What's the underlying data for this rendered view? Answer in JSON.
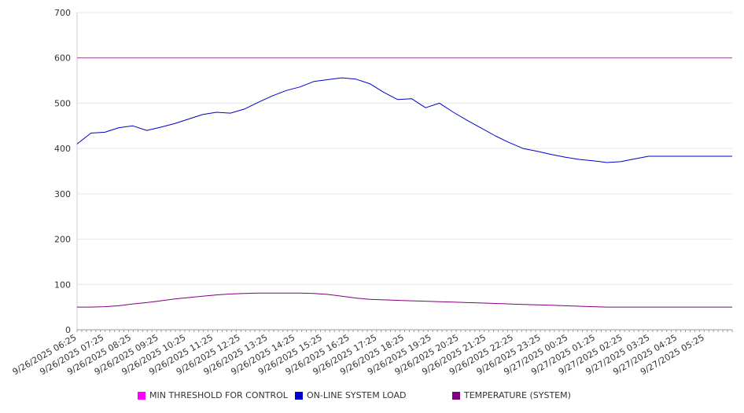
{
  "chart_data": {
    "type": "line",
    "title": "",
    "xlabel": "",
    "ylabel": "",
    "ylim": [
      0,
      700
    ],
    "y_ticks": [
      0,
      100,
      200,
      300,
      400,
      500,
      600,
      700
    ],
    "grid": true,
    "legend_position": "bottom",
    "x_tick_labels": [
      "9/26/2025 06:25",
      "9/26/2025 07:25",
      "9/26/2025 08:25",
      "9/26/2025 09:25",
      "9/26/2025 10:25",
      "9/26/2025 11:25",
      "9/26/2025 12:25",
      "9/26/2025 13:25",
      "9/26/2025 14:25",
      "9/26/2025 15:25",
      "9/26/2025 16:25",
      "9/26/2025 17:25",
      "9/26/2025 18:25",
      "9/26/2025 19:25",
      "9/26/2025 20:25",
      "9/26/2025 21:25",
      "9/26/2025 22:25",
      "9/26/2025 23:25",
      "9/27/2025 00:25",
      "9/27/2025 01:25",
      "9/27/2025 02:25",
      "9/27/2025 03:25",
      "9/27/2025 04:25",
      "9/27/2025 05:25"
    ],
    "x": [
      "06:25",
      "06:55",
      "07:25",
      "07:55",
      "08:25",
      "08:55",
      "09:25",
      "09:55",
      "10:25",
      "10:55",
      "11:25",
      "11:55",
      "12:25",
      "12:55",
      "13:25",
      "13:55",
      "14:25",
      "14:55",
      "15:25",
      "15:55",
      "16:25",
      "16:55",
      "17:25",
      "17:55",
      "18:25",
      "18:55",
      "19:25",
      "19:55",
      "20:25",
      "20:55",
      "21:25",
      "21:55",
      "22:25",
      "22:55",
      "23:25",
      "23:55",
      "00:25",
      "00:55",
      "01:25",
      "01:55",
      "02:25",
      "02:55",
      "03:25",
      "03:55",
      "04:25",
      "04:55",
      "05:25",
      "05:55"
    ],
    "series": [
      {
        "name": "MIN THRESHOLD FOR CONTROL",
        "color": "#ff00ff",
        "values": [
          600,
          600,
          600,
          600,
          600,
          600,
          600,
          600,
          600,
          600,
          600,
          600,
          600,
          600,
          600,
          600,
          600,
          600,
          600,
          600,
          600,
          600,
          600,
          600,
          600,
          600,
          600,
          600,
          600,
          600,
          600,
          600,
          600,
          600,
          600,
          600,
          600,
          600,
          600,
          600,
          600,
          600,
          600,
          600,
          600,
          600,
          600,
          600
        ]
      },
      {
        "name": "ON-LINE SYSTEM LOAD",
        "color": "#0000cc",
        "values": [
          410,
          434,
          436,
          446,
          450,
          440,
          447,
          455,
          465,
          475,
          480,
          478,
          487,
          502,
          516,
          528,
          536,
          548,
          552,
          556,
          553,
          543,
          524,
          508,
          510,
          490,
          500,
          480,
          462,
          445,
          428,
          413,
          400,
          394,
          387,
          381,
          376,
          373,
          369,
          371,
          377,
          383,
          383,
          383,
          383,
          383,
          383,
          383
        ]
      },
      {
        "name": "TEMPERATURE (SYSTEM)",
        "color": "#800080",
        "values": [
          50,
          50,
          51,
          53,
          57,
          60,
          64,
          68,
          71,
          74,
          77,
          79,
          80,
          81,
          81,
          81,
          81,
          80,
          78,
          74,
          70,
          67,
          66,
          65,
          64,
          63,
          62,
          61,
          60,
          59,
          58,
          57,
          56,
          55,
          54,
          53,
          52,
          51,
          50,
          50,
          50,
          50,
          50,
          50,
          50,
          50,
          50,
          50
        ]
      }
    ]
  }
}
